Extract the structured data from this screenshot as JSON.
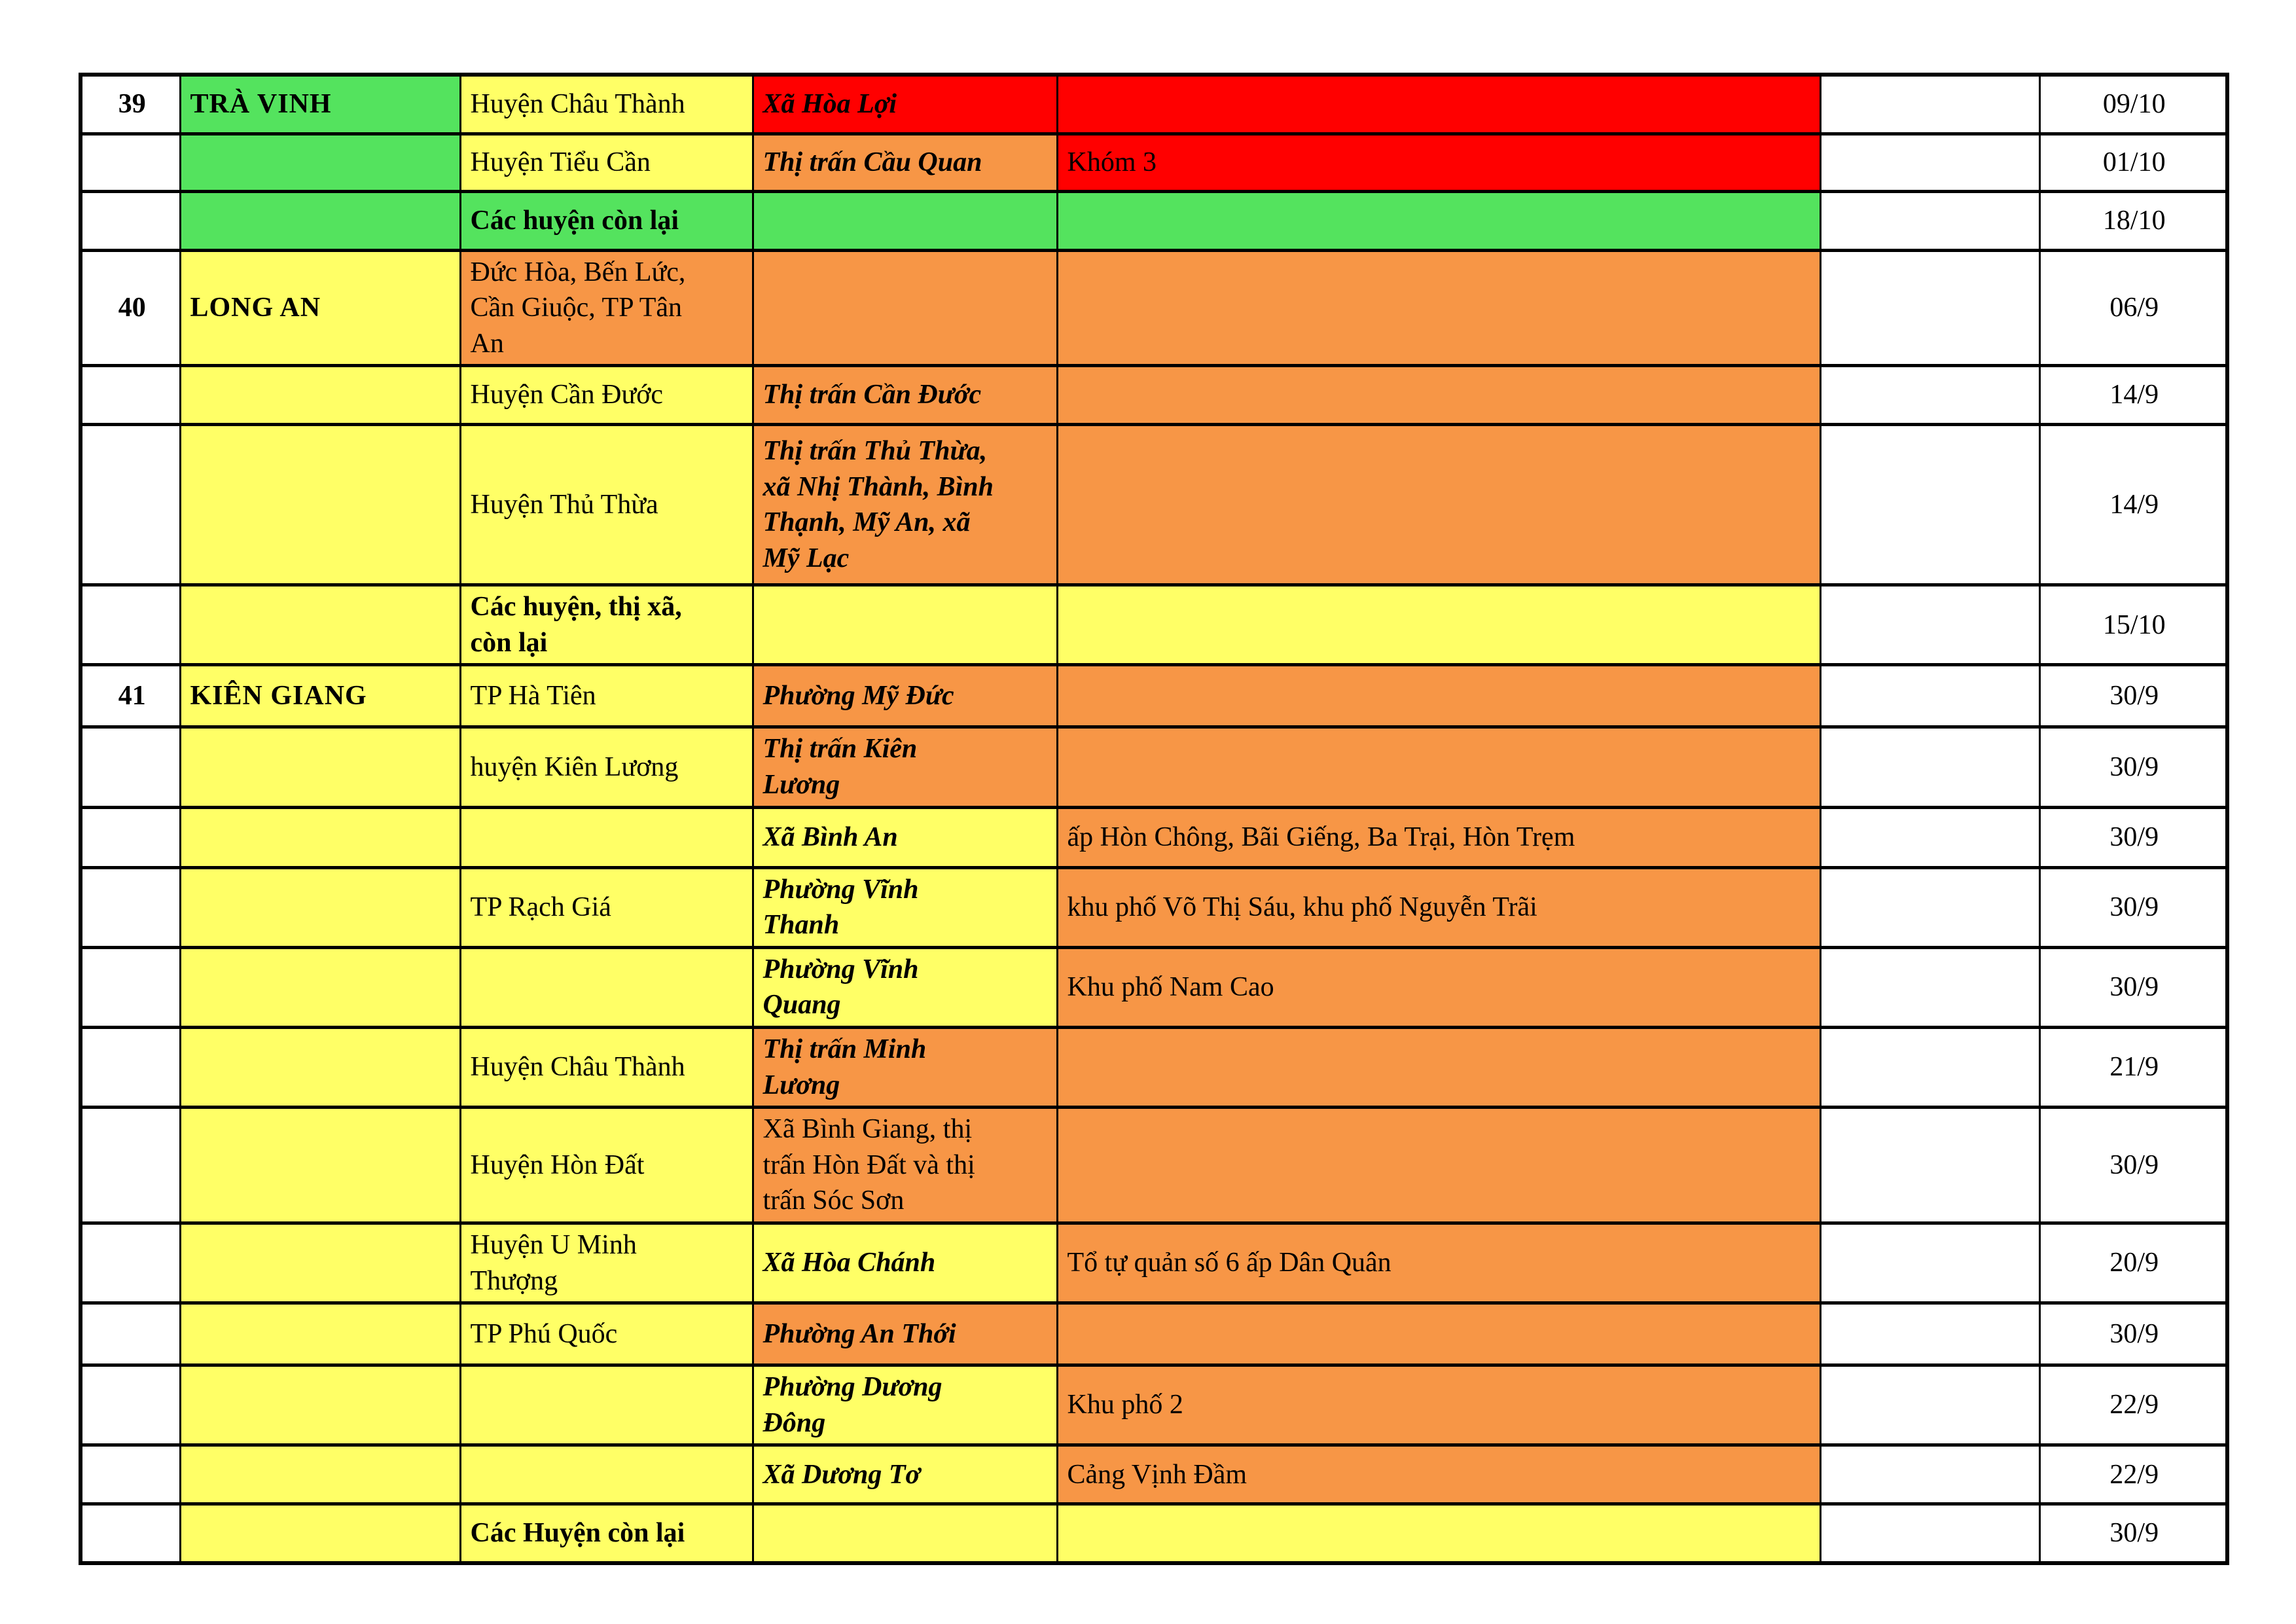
{
  "palette": {
    "w": "#ffffff",
    "g": "#54e35e",
    "y": "#ffff66",
    "o": "#f79646",
    "r": "#ff0000",
    "border": "#000000",
    "text": "#000000"
  },
  "table": {
    "columns": [
      "no",
      "province",
      "district",
      "ward",
      "detail",
      "spacer",
      "date"
    ],
    "rows": [
      {
        "no": "39",
        "province": "TRÀ VINH",
        "district": "Huyện Châu Thành",
        "ward": "Xã Hòa Lợi",
        "detail": "",
        "date": "09/10",
        "colors": [
          "w",
          "g",
          "y",
          "r",
          "r",
          "w",
          "w"
        ],
        "district_style": "normal",
        "ward_style": "emphasis",
        "date_valign": "middle"
      },
      {
        "no": "",
        "province": "",
        "district": "Huyện Tiểu Cần",
        "ward": "Thị trấn Cầu Quan",
        "detail": "Khóm 3",
        "date": "01/10",
        "colors": [
          "w",
          "g",
          "y",
          "o",
          "r",
          "w",
          "w"
        ],
        "district_style": "normal",
        "ward_style": "emphasis",
        "date_valign": "middle"
      },
      {
        "no": "",
        "province": "",
        "district": "Các huyện còn lại",
        "ward": "",
        "detail": "",
        "date": "18/10",
        "colors": [
          "w",
          "g",
          "g",
          "g",
          "g",
          "w",
          "w"
        ],
        "district_style": "bold",
        "ward_style": "normal",
        "date_valign": "middle"
      },
      {
        "no": "40",
        "province": "LONG AN",
        "district": "Đức Hòa, Bến Lức,\nCần Giuộc, TP Tân\nAn",
        "ward": "",
        "detail": "",
        "date": "06/9",
        "colors": [
          "w",
          "y",
          "o",
          "o",
          "o",
          "w",
          "w"
        ],
        "district_style": "normal",
        "ward_style": "normal",
        "date_valign": "middle"
      },
      {
        "no": "",
        "province": "",
        "district": "Huyện Cần Đước",
        "ward": "Thị trấn Cần Đước",
        "detail": "",
        "date": "14/9",
        "colors": [
          "w",
          "y",
          "y",
          "o",
          "o",
          "w",
          "w"
        ],
        "district_style": "normal",
        "ward_style": "emphasis",
        "date_valign": "middle"
      },
      {
        "no": "",
        "province": "",
        "district": "Huyện Thủ Thừa",
        "ward": "Thị trấn Thủ Thừa,\nxã Nhị Thành, Bình\nThạnh, Mỹ An, xã\nMỹ Lạc",
        "detail": "",
        "date": "14/9",
        "colors": [
          "w",
          "y",
          "y",
          "o",
          "o",
          "w",
          "w"
        ],
        "district_style": "normal",
        "ward_style": "emphasis",
        "date_valign": "middle"
      },
      {
        "no": "",
        "province": "",
        "district": "Các huyện, thị xã,\ncòn lại",
        "ward": "",
        "detail": "",
        "date": "15/10",
        "colors": [
          "w",
          "y",
          "y",
          "y",
          "y",
          "w",
          "w"
        ],
        "district_style": "bold",
        "ward_style": "normal",
        "date_valign": "middle"
      },
      {
        "no": "41",
        "province": "KIÊN GIANG",
        "district": "TP Hà Tiên",
        "ward": "Phường Mỹ Đức",
        "detail": "",
        "date": "30/9",
        "colors": [
          "w",
          "y",
          "y",
          "o",
          "o",
          "w",
          "w"
        ],
        "district_style": "normal",
        "ward_style": "emphasis",
        "date_valign": "top"
      },
      {
        "no": "",
        "province": "",
        "district": "huyện Kiên Lương",
        "ward": "Thị trấn Kiên\nLương",
        "detail": "",
        "date": "30/9",
        "colors": [
          "w",
          "y",
          "y",
          "o",
          "o",
          "w",
          "w"
        ],
        "district_style": "normal",
        "ward_style": "emphasis",
        "date_valign": "middle"
      },
      {
        "no": "",
        "province": "",
        "district": "",
        "ward": "Xã Bình An",
        "detail": "ấp Hòn Chông, Bãi Giếng, Ba Trại, Hòn Trẹm",
        "date": "30/9",
        "colors": [
          "w",
          "y",
          "y",
          "y",
          "o",
          "w",
          "w"
        ],
        "district_style": "normal",
        "ward_style": "emphasis",
        "date_valign": "middle"
      },
      {
        "no": "",
        "province": "",
        "district": "TP Rạch Giá",
        "ward": "Phường Vĩnh\nThanh",
        "detail": "khu phố Võ Thị Sáu, khu phố Nguyễn Trãi",
        "date": "30/9",
        "colors": [
          "w",
          "y",
          "y",
          "y",
          "o",
          "w",
          "w"
        ],
        "district_style": "normal",
        "ward_style": "emphasis",
        "date_valign": "middle"
      },
      {
        "no": "",
        "province": "",
        "district": "",
        "ward": "Phường Vĩnh\nQuang",
        "detail": "Khu phố Nam Cao",
        "date": "30/9",
        "colors": [
          "w",
          "y",
          "y",
          "y",
          "o",
          "w",
          "w"
        ],
        "district_style": "normal",
        "ward_style": "emphasis",
        "date_valign": "middle"
      },
      {
        "no": "",
        "province": "",
        "district": "Huyện Châu Thành",
        "ward": "Thị trấn Minh\nLương",
        "detail": "",
        "date": "21/9",
        "colors": [
          "w",
          "y",
          "y",
          "o",
          "o",
          "w",
          "w"
        ],
        "district_style": "normal",
        "ward_style": "emphasis",
        "date_valign": "top"
      },
      {
        "no": "",
        "province": "",
        "district": "Huyện Hòn Đất",
        "ward": "Xã Bình Giang, thị\ntrấn Hòn Đất và thị\ntrấn Sóc Sơn",
        "detail": "",
        "date": "30/9",
        "colors": [
          "w",
          "y",
          "y",
          "o",
          "o",
          "w",
          "w"
        ],
        "district_style": "normal",
        "ward_style": "normal",
        "date_valign": "top"
      },
      {
        "no": "",
        "province": "",
        "district": "Huyện U Minh\nThượng",
        "ward": "Xã Hòa Chánh",
        "detail": "Tổ tự quản số 6 ấp Dân Quân",
        "date": "20/9",
        "colors": [
          "w",
          "y",
          "y",
          "y",
          "o",
          "w",
          "w"
        ],
        "district_style": "normal",
        "ward_style": "emphasis",
        "date_valign": "middle"
      },
      {
        "no": "",
        "province": "",
        "district": "TP Phú Quốc",
        "ward": "Phường An Thới",
        "detail": "",
        "date": "30/9",
        "colors": [
          "w",
          "y",
          "y",
          "o",
          "o",
          "w",
          "w"
        ],
        "district_style": "normal",
        "ward_style": "emphasis",
        "date_valign": "middle"
      },
      {
        "no": "",
        "province": "",
        "district": "",
        "ward": "Phường Dương\nĐông",
        "detail": "Khu phố 2",
        "date": "22/9",
        "colors": [
          "w",
          "y",
          "y",
          "y",
          "o",
          "w",
          "w"
        ],
        "district_style": "normal",
        "ward_style": "emphasis",
        "date_valign": "middle"
      },
      {
        "no": "",
        "province": "",
        "district": "",
        "ward": "Xã Dương Tơ",
        "detail": "Cảng Vịnh Đầm",
        "date": "22/9",
        "colors": [
          "w",
          "y",
          "y",
          "y",
          "o",
          "w",
          "w"
        ],
        "district_style": "normal",
        "ward_style": "emphasis",
        "date_valign": "middle"
      },
      {
        "no": "",
        "province": "",
        "district": "Các Huyện còn lại",
        "ward": "",
        "detail": "",
        "date": "30/9",
        "colors": [
          "w",
          "y",
          "y",
          "y",
          "y",
          "w",
          "w"
        ],
        "district_style": "bold",
        "ward_style": "normal",
        "date_valign": "middle"
      }
    ]
  }
}
